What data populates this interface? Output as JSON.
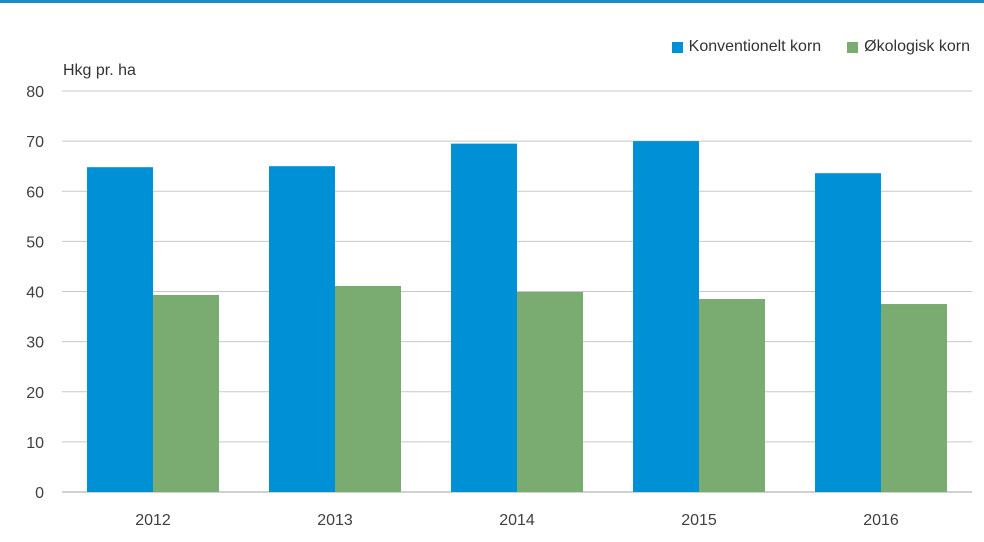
{
  "chart_data": {
    "type": "bar",
    "title": "",
    "xlabel": "",
    "ylabel": "Hkg pr. ha",
    "categories": [
      "2012",
      "2013",
      "2014",
      "2015",
      "2016"
    ],
    "series": [
      {
        "name": "Konventionelt korn",
        "color": "#0090d6",
        "values": [
          64.8,
          65.0,
          69.5,
          70.0,
          63.6
        ]
      },
      {
        "name": "Økologisk korn",
        "color": "#7aab70",
        "values": [
          39.3,
          41.1,
          39.9,
          38.5,
          37.5
        ]
      }
    ],
    "ylim": [
      0,
      80
    ],
    "yticks": [
      "0",
      "10",
      "20",
      "30",
      "40",
      "50",
      "60",
      "70",
      "80"
    ],
    "grid": true,
    "legend_position": "top-right"
  },
  "colors": {
    "top_rule": "#1a8cc4",
    "gridline": "#c8c8c8"
  }
}
